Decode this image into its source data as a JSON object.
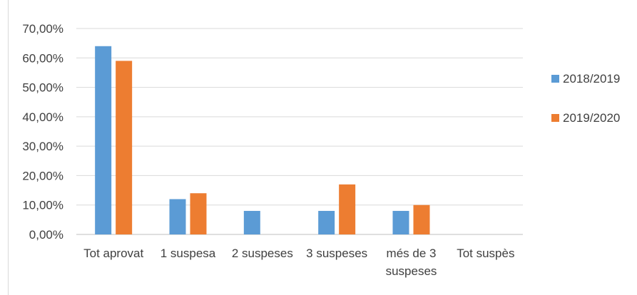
{
  "chart_data": {
    "type": "bar",
    "categories": [
      [
        "Tot aprovat"
      ],
      [
        "1 suspesa"
      ],
      [
        "2 suspeses"
      ],
      [
        "3 suspeses"
      ],
      [
        "més de 3",
        "suspeses"
      ],
      [
        "Tot suspès"
      ]
    ],
    "series": [
      {
        "name": "2018/2019",
        "color": "#5b9bd5",
        "values": [
          0.64,
          0.12,
          0.08,
          0.08,
          0.08,
          0
        ]
      },
      {
        "name": "2019/2020",
        "color": "#ed7d31",
        "values": [
          0.59,
          0.14,
          0,
          0.17,
          0.1,
          0
        ]
      }
    ],
    "yticks": [
      "0,00%",
      "10,00%",
      "20,00%",
      "30,00%",
      "40,00%",
      "50,00%",
      "60,00%",
      "70,00%"
    ],
    "ylim": [
      0,
      0.7
    ],
    "grid": true,
    "legend_position": "right",
    "title": "",
    "xlabel": "",
    "ylabel": ""
  }
}
